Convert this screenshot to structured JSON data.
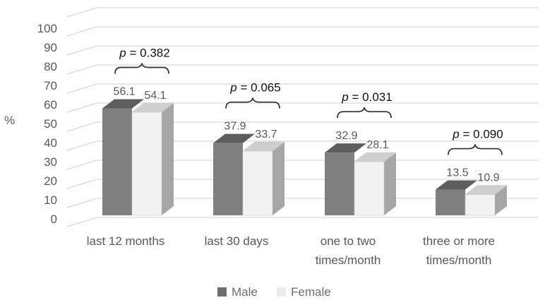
{
  "chart_data": {
    "type": "bar",
    "variant": "3d-column",
    "title": "",
    "xlabel": "",
    "ylabel": "%",
    "ylim": [
      0,
      100
    ],
    "yticks": [
      0,
      10,
      20,
      30,
      40,
      50,
      60,
      70,
      80,
      90,
      100
    ],
    "grid": true,
    "legend_position": "bottom",
    "categories": [
      "last 12 months",
      "last 30 days",
      "one to two times/month",
      "three or more times/month"
    ],
    "category_display_lines": [
      [
        "last 12 months"
      ],
      [
        "last 30 days"
      ],
      [
        "one to two",
        "times/month"
      ],
      [
        "three or more",
        "times/month"
      ]
    ],
    "series": [
      {
        "name": "Male",
        "values": [
          56.1,
          37.9,
          32.9,
          13.5
        ]
      },
      {
        "name": "Female",
        "values": [
          54.1,
          33.7,
          28.1,
          10.9
        ]
      }
    ],
    "annotations": {
      "p_symbol": "p",
      "p_prefix": " = ",
      "p_values": [
        "0.382",
        "0.065",
        "0.031",
        "0.090"
      ]
    },
    "colors": {
      "male_front": "#808080",
      "male_top": "#5e5e5e",
      "female_front": "#f2f2f2",
      "female_top": "#cfcfcf",
      "female_side": "#a6a6a6",
      "female_edge": "#c9c9c9",
      "gridline": "#d9d9d9",
      "gray_text": "#595959",
      "legend_text": "#6e6e6e",
      "p_text": "#111111",
      "brace": "#2f2f2f",
      "legend_male_swatch": "#6e6e6e",
      "legend_female_swatch": "#ebebeb"
    }
  }
}
